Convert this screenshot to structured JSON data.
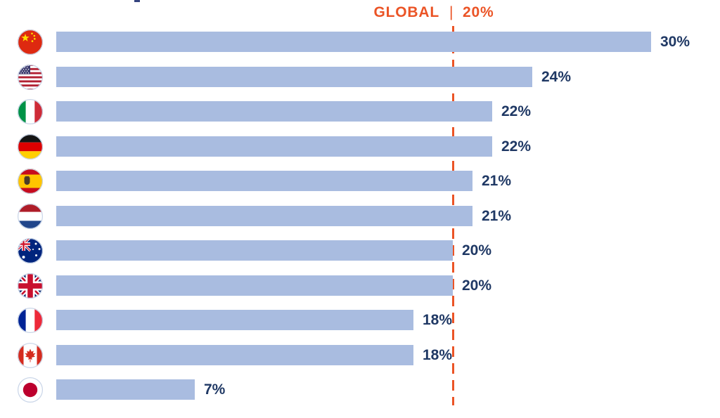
{
  "header": {
    "global_label": "GLOBAL",
    "separator": "|",
    "global_value": "20%"
  },
  "colors": {
    "bar": "#A9BCE0",
    "value_text": "#1F3864",
    "accent_orange": "#EB5426",
    "flag_ring": "#C9D5E8"
  },
  "rows": [
    {
      "country": "China",
      "flag_icon": "china-flag-icon",
      "value": 30,
      "label": "30%"
    },
    {
      "country": "United States",
      "flag_icon": "usa-flag-icon",
      "value": 24,
      "label": "24%"
    },
    {
      "country": "Italy",
      "flag_icon": "italy-flag-icon",
      "value": 22,
      "label": "22%"
    },
    {
      "country": "Germany",
      "flag_icon": "germany-flag-icon",
      "value": 22,
      "label": "22%"
    },
    {
      "country": "Spain",
      "flag_icon": "spain-flag-icon",
      "value": 21,
      "label": "21%"
    },
    {
      "country": "Netherlands",
      "flag_icon": "netherlands-flag-icon",
      "value": 21,
      "label": "21%"
    },
    {
      "country": "Australia",
      "flag_icon": "australia-flag-icon",
      "value": 20,
      "label": "20%"
    },
    {
      "country": "United Kingdom",
      "flag_icon": "uk-flag-icon",
      "value": 20,
      "label": "20%"
    },
    {
      "country": "France",
      "flag_icon": "france-flag-icon",
      "value": 18,
      "label": "18%"
    },
    {
      "country": "Canada",
      "flag_icon": "canada-flag-icon",
      "value": 18,
      "label": "18%"
    },
    {
      "country": "Japan",
      "flag_icon": "japan-flag-icon",
      "value": 7,
      "label": "7%"
    }
  ],
  "chart_data": {
    "type": "bar",
    "orientation": "horizontal",
    "categories": [
      "China",
      "United States",
      "Italy",
      "Germany",
      "Spain",
      "Netherlands",
      "Australia",
      "United Kingdom",
      "France",
      "Canada",
      "Japan"
    ],
    "values": [
      30,
      24,
      22,
      22,
      21,
      21,
      20,
      20,
      18,
      18,
      7
    ],
    "value_labels": [
      "30%",
      "24%",
      "22%",
      "22%",
      "21%",
      "21%",
      "20%",
      "20%",
      "18%",
      "18%",
      "7%"
    ],
    "title": "",
    "xlabel": "",
    "ylabel": "",
    "xlim": [
      0,
      33.5
    ],
    "grid": false,
    "legend": null,
    "bar_color": "#A9BCE0",
    "reference_line": {
      "value": 20,
      "label": "GLOBAL",
      "value_label": "20%",
      "color": "#EB5426",
      "style": "dashed"
    }
  }
}
